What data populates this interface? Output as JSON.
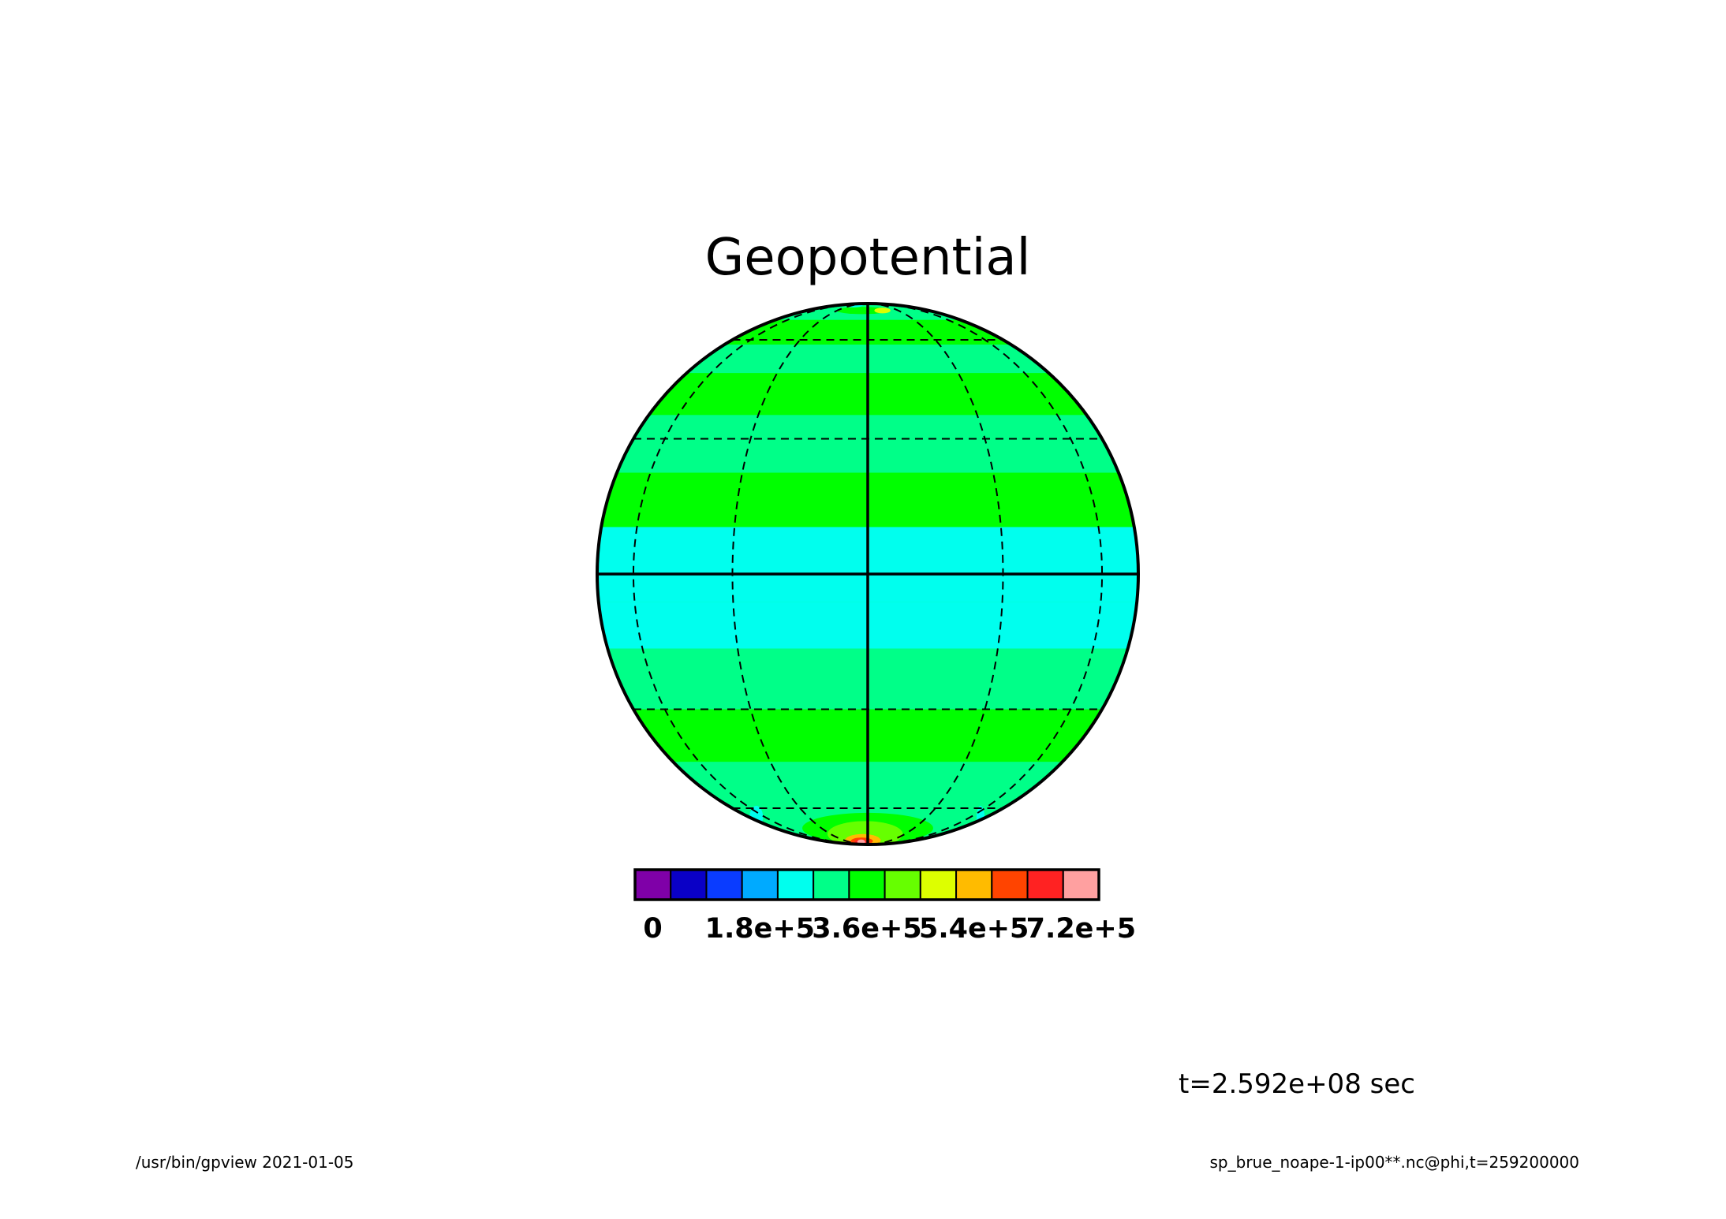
{
  "chart_data": {
    "type": "heatmap",
    "title": "Geopotential",
    "projection": "orthographic",
    "grid": true,
    "graticule": {
      "meridians_deg": [
        -90,
        -60,
        -30,
        0,
        30,
        60,
        90
      ],
      "parallels_deg": [
        -60,
        -30,
        0,
        30,
        60
      ]
    },
    "colorbar": {
      "placement": "bottom",
      "level_step": 60000,
      "levels": [
        0,
        60000,
        120000,
        180000,
        240000,
        300000,
        360000,
        420000,
        480000,
        540000,
        600000,
        660000,
        720000,
        780000
      ],
      "colors": [
        "#7f00a8",
        "#0a00c6",
        "#0a3cff",
        "#00aaff",
        "#00ffee",
        "#00ff88",
        "#00ff00",
        "#66ff00",
        "#ddff00",
        "#ffbb00",
        "#ff4400",
        "#ff2222",
        "#ffa0a0"
      ],
      "tick_labels": [
        {
          "value": 0,
          "text": "0"
        },
        {
          "value": 180000,
          "text": "1.8e+5"
        },
        {
          "value": 360000,
          "text": "3.6e+5"
        },
        {
          "value": 540000,
          "text": "5.4e+5"
        },
        {
          "value": 720000,
          "text": "7.2e+5"
        }
      ]
    },
    "field": {
      "units": "",
      "zonal_bands": [
        {
          "lat_from": 90,
          "lat_to": 84,
          "value": 250000
        },
        {
          "lat_from": 84,
          "lat_to": 70,
          "value": 330000
        },
        {
          "lat_from": 70,
          "lat_to": 58,
          "value": 390000
        },
        {
          "lat_from": 58,
          "lat_to": 48,
          "value": 330000
        },
        {
          "lat_from": 48,
          "lat_to": 36,
          "value": 390000
        },
        {
          "lat_from": 36,
          "lat_to": 22,
          "value": 330000
        },
        {
          "lat_from": 22,
          "lat_to": 10,
          "value": 390000
        },
        {
          "lat_from": 10,
          "lat_to": 0,
          "value": 270000
        },
        {
          "lat_from": 0,
          "lat_to": -6,
          "value": 270000
        },
        {
          "lat_from": -6,
          "lat_to": -16,
          "value": 270000
        },
        {
          "lat_from": -16,
          "lat_to": -30,
          "value": 330000
        },
        {
          "lat_from": -30,
          "lat_to": -44,
          "value": 390000
        },
        {
          "lat_from": -44,
          "lat_to": -56,
          "value": 330000
        },
        {
          "lat_from": -56,
          "lat_to": -90,
          "value": 330000
        }
      ],
      "anomalies": [
        {
          "lat": 77,
          "lon": -5,
          "dlat": 4,
          "dlon": 25,
          "value": 390000
        },
        {
          "lat": 77,
          "lon": 14,
          "dlat": 3,
          "dlon": 8,
          "value": 510000
        },
        {
          "lat": 84,
          "lon": -30,
          "dlat": 4,
          "dlon": 20,
          "value": 270000
        },
        {
          "lat": -70,
          "lon": 0,
          "dlat": 8,
          "dlon": 45,
          "value": 390000
        },
        {
          "lat": -74,
          "lon": -2,
          "dlat": 8,
          "dlon": 30,
          "value": 450000
        },
        {
          "lat": -80,
          "lon": -6,
          "dlat": 6,
          "dlon": 22,
          "value": 570000
        },
        {
          "lat": -81,
          "lon": -8,
          "dlat": 4,
          "dlon": 15,
          "value": 630000
        },
        {
          "lat": -82,
          "lon": -10,
          "dlat": 3,
          "dlon": 10,
          "value": 690000
        },
        {
          "lat": -82,
          "lon": -10,
          "dlat": 1.5,
          "dlon": 6,
          "value": 750000
        },
        {
          "lat": -64,
          "lon": -70,
          "dlat": 5,
          "dlon": 8,
          "value": 270000
        },
        {
          "lat": -64,
          "lon": 72,
          "dlat": 5,
          "dlon": 8,
          "value": 270000
        }
      ]
    }
  },
  "time_label": "t=2.592e+08 sec",
  "footer": {
    "left": "/usr/bin/gpview   2021-01-05",
    "right": "sp_brue_noape-1-ip00**.nc@phi,t=259200000"
  }
}
